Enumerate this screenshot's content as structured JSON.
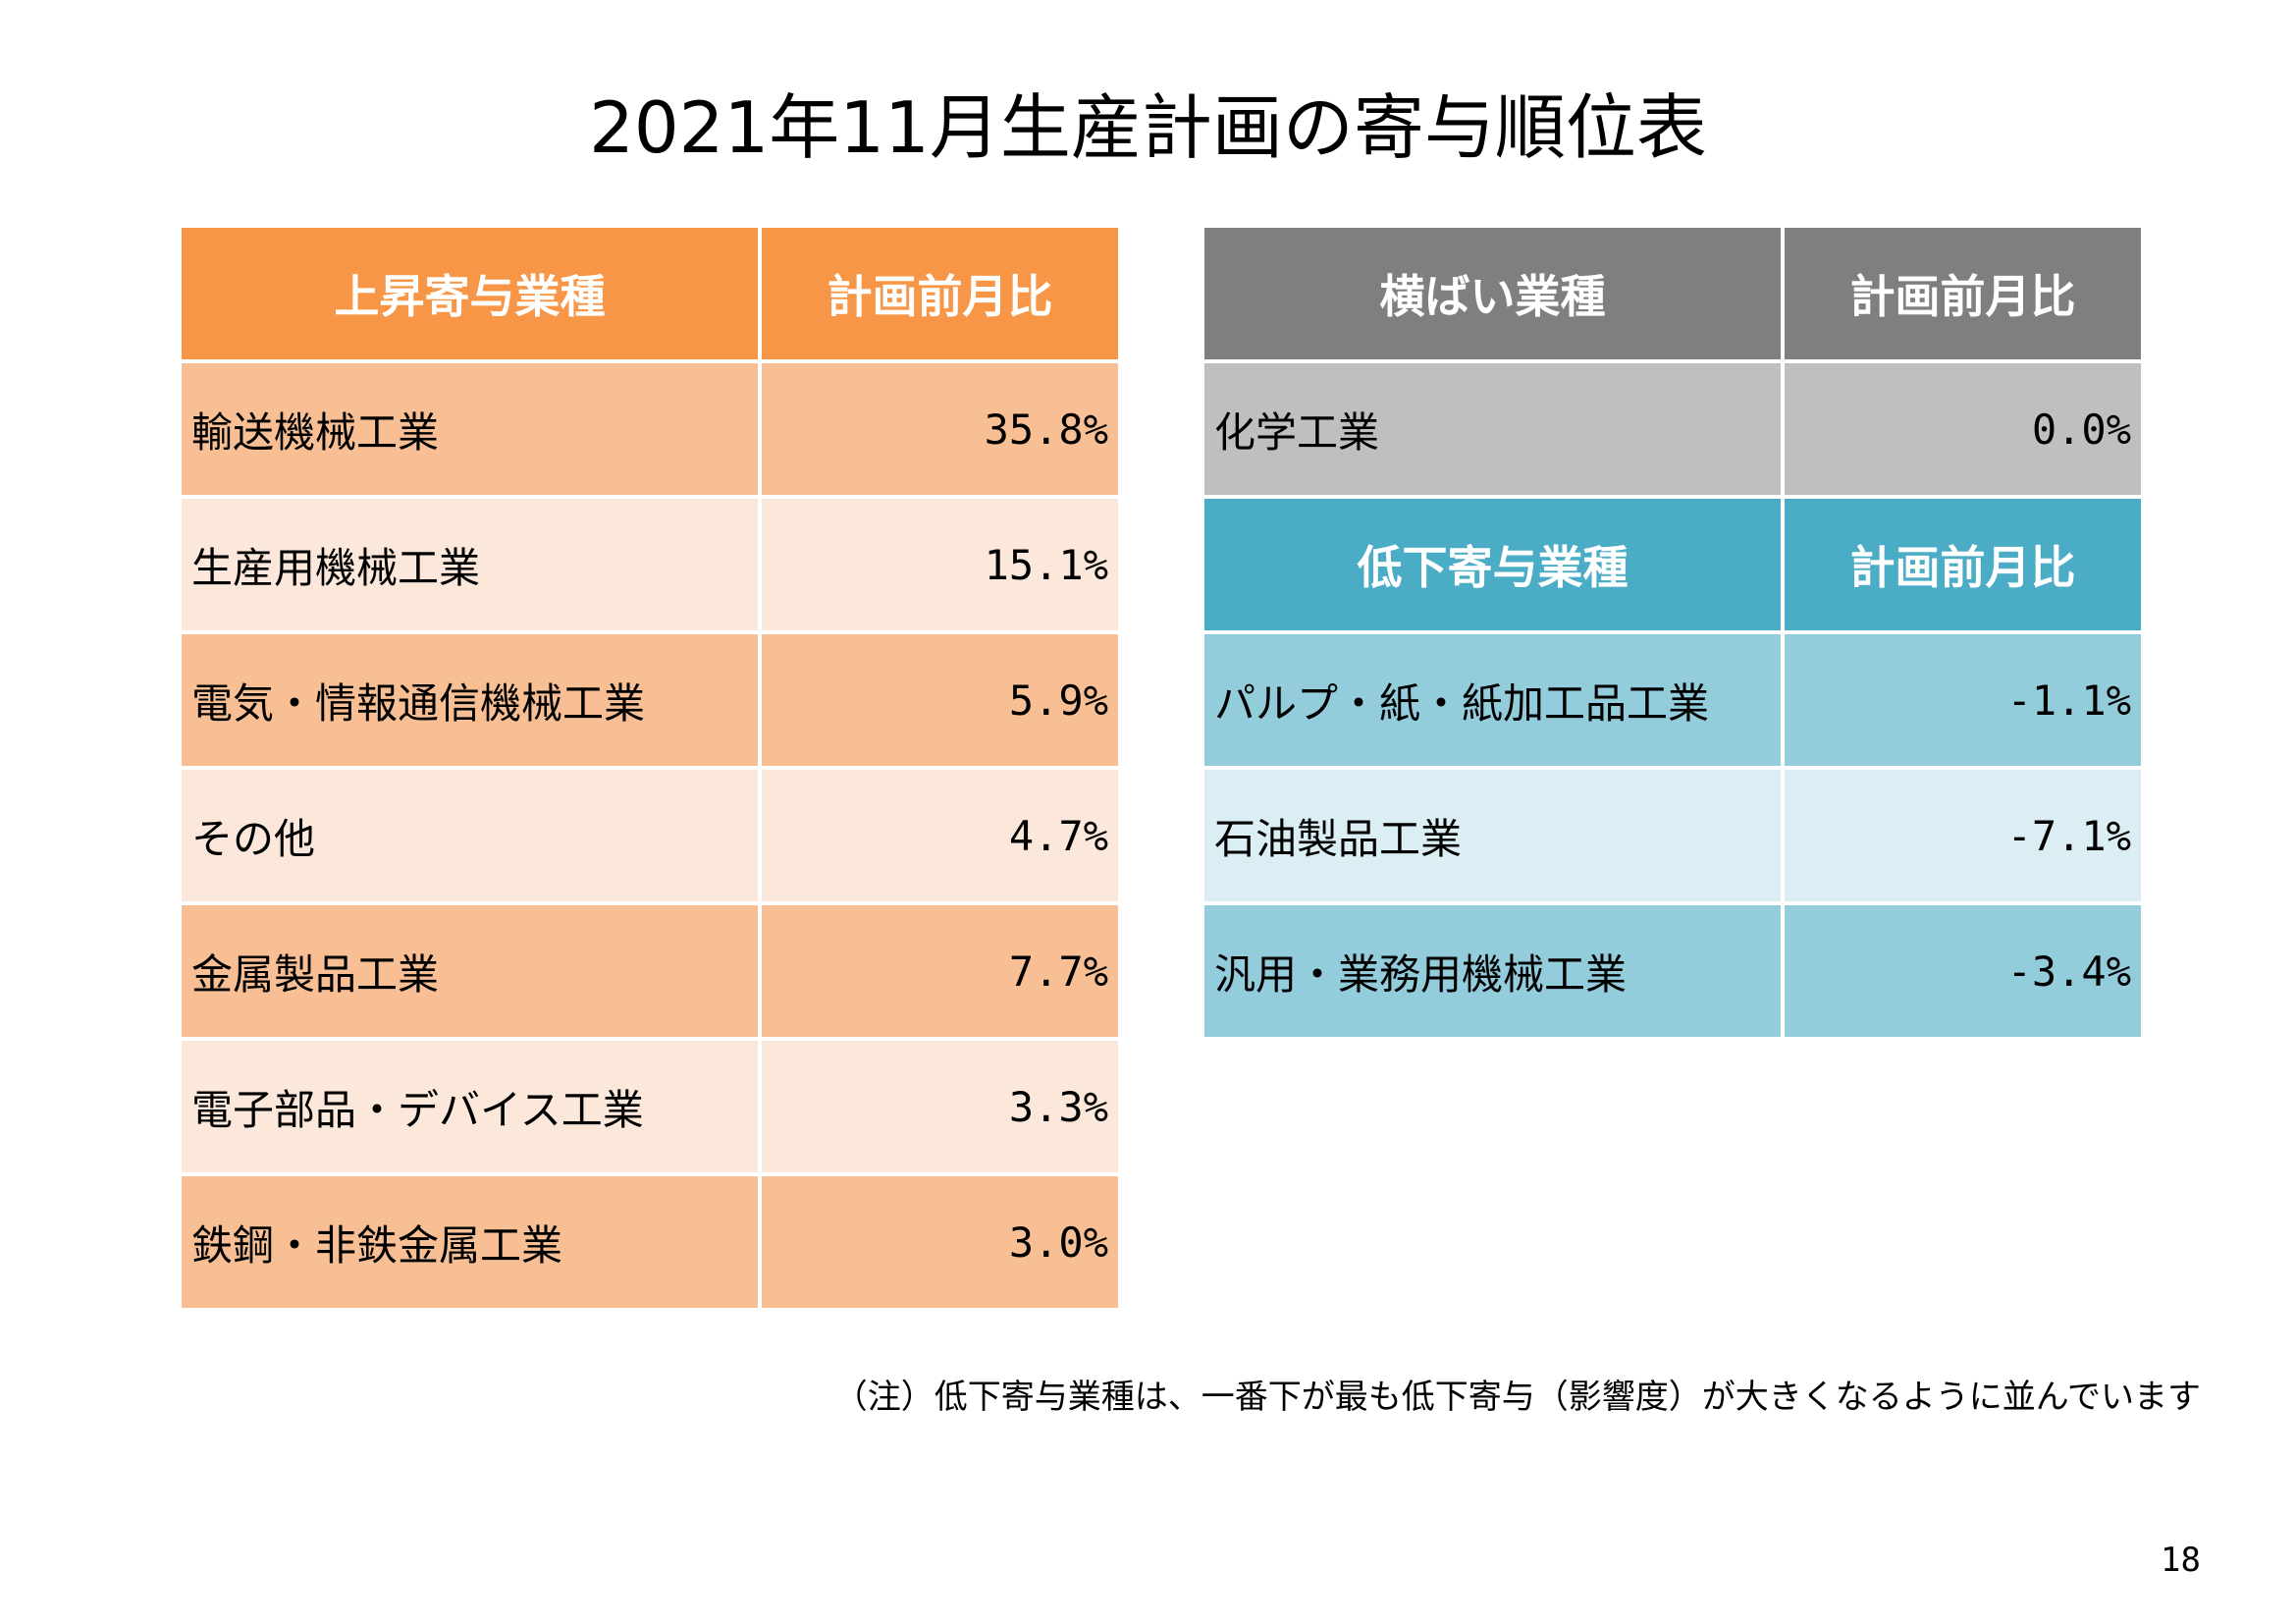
{
  "title": "2021年11月生産計画の寄与順位表",
  "colors": {
    "rise_header": "#f79646",
    "rise_row_dark": "#f8bf95",
    "rise_row_light": "#fce8da",
    "flat_header": "#7f7f7f",
    "flat_row": "#bfbfbf",
    "fall_header": "#4bacc6",
    "fall_row_dark": "#93cddc",
    "fall_row_light": "#daeef3"
  },
  "rise_table": {
    "header": {
      "industry": "上昇寄与業種",
      "ratio": "計画前月比"
    },
    "rows": [
      {
        "industry": "輸送機械工業",
        "ratio": "35.8%"
      },
      {
        "industry": "生産用機械工業",
        "ratio": "15.1%"
      },
      {
        "industry": "電気・情報通信機械工業",
        "ratio": "5.9%"
      },
      {
        "industry": "その他",
        "ratio": "4.7%"
      },
      {
        "industry": "金属製品工業",
        "ratio": "7.7%"
      },
      {
        "industry": "電子部品・デバイス工業",
        "ratio": "3.3%"
      },
      {
        "industry": "鉄鋼・非鉄金属工業",
        "ratio": "3.0%"
      }
    ]
  },
  "flat_table": {
    "header": {
      "industry": "横ばい業種",
      "ratio": "計画前月比"
    },
    "rows": [
      {
        "industry": "化学工業",
        "ratio": "0.0%"
      }
    ]
  },
  "fall_table": {
    "header": {
      "industry": "低下寄与業種",
      "ratio": "計画前月比"
    },
    "rows": [
      {
        "industry": "パルプ・紙・紙加工品工業",
        "ratio": "-1.1%"
      },
      {
        "industry": "石油製品工業",
        "ratio": "-7.1%"
      },
      {
        "industry": "汎用・業務用機械工業",
        "ratio": "-3.4%"
      }
    ]
  },
  "note": "（注）低下寄与業種は、一番下が最も低下寄与（影響度）が大きくなるように並んでいます",
  "page_number": "18"
}
